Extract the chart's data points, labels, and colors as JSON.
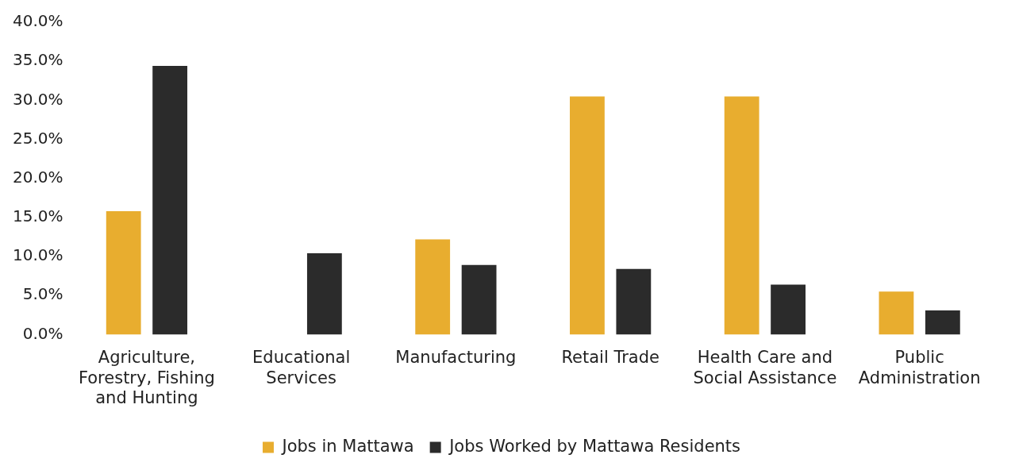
{
  "chart_data": {
    "type": "bar",
    "categories": [
      "Agriculture, Forestry, Fishing and Hunting",
      "Educational Services",
      "Manufacturing",
      "Retail Trade",
      "Health Care and Social Assistance",
      "Public Administration"
    ],
    "series": [
      {
        "name": "Jobs in Mattawa",
        "color": "#e8ad2f",
        "values": [
          15.8,
          null,
          12.2,
          30.5,
          30.5,
          5.5
        ]
      },
      {
        "name": "Jobs Worked by Mattawa Residents",
        "color": "#2b2b2b",
        "values": [
          34.4,
          10.4,
          8.9,
          8.4,
          6.4,
          3.1
        ]
      }
    ],
    "ylim": [
      0,
      40
    ],
    "yticks": [
      {
        "value": 0,
        "label": "0.0%"
      },
      {
        "value": 5,
        "label": "5.0%"
      },
      {
        "value": 10,
        "label": "10.0%"
      },
      {
        "value": 15,
        "label": "15.0%"
      },
      {
        "value": 20,
        "label": "20.0%"
      },
      {
        "value": 25,
        "label": "25.0%"
      },
      {
        "value": 30,
        "label": "30.0%"
      },
      {
        "value": 35,
        "label": "35.0%"
      },
      {
        "value": 40,
        "label": "40.0%"
      }
    ],
    "grid": false,
    "legend": "bottom"
  }
}
